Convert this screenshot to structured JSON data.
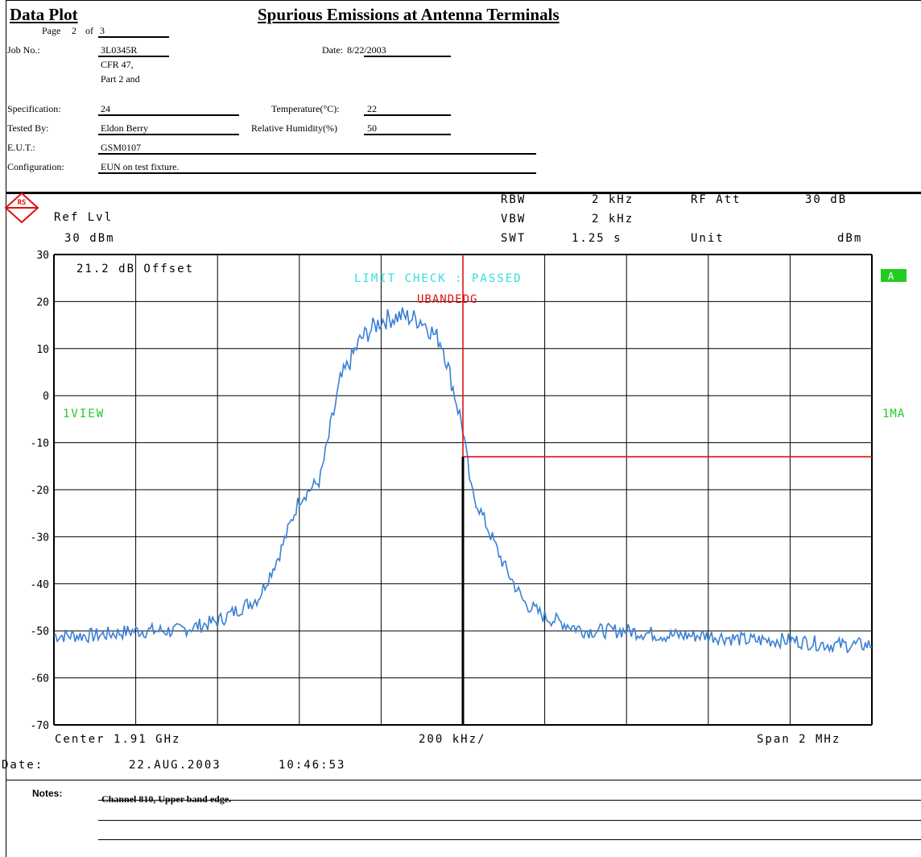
{
  "header": {
    "left_title": "Data Plot",
    "main_title": "Spurious Emissions at Antenna Terminals",
    "page_label": "Page",
    "page_num": "2",
    "page_of": "of",
    "page_total": "3",
    "job_label": "Job No.:",
    "job_value": "3L0345R",
    "date_label": "Date:",
    "date_value": "8/22/2003",
    "spec_label": "Specification:",
    "spec_line1": "CFR 47,",
    "spec_line2": "Part 2 and",
    "spec_line3": "24",
    "temp_label": "Temperature(°C):",
    "temp_value": "22",
    "tested_label": "Tested By:",
    "tested_value": "Eldon Berry",
    "humidity_label": "Relative Humidity(%)",
    "humidity_value": "50",
    "eut_label": "E.U.T.:",
    "eut_value": "GSM0107",
    "config_label": "Configuration:",
    "config_value": "EUN on test fixture."
  },
  "analyzer": {
    "rbw_label": "RBW",
    "rbw_value": "2 kHz",
    "vbw_label": "VBW",
    "vbw_value": "2 kHz",
    "swt_label": "SWT",
    "swt_value": "1.25 s",
    "rfatt_label": "RF Att",
    "rfatt_value": "30 dB",
    "unit_label": "Unit",
    "unit_value": "dBm",
    "ref_label": "Ref Lvl",
    "ref_value": "30 dBm",
    "offset_text": "21.2 dB Offset",
    "limit_text": "LIMIT CHECK  : PASSED",
    "limit_line_name": "UBANDEDG",
    "trace_left": "1VIEW",
    "trace_right": "1MA",
    "marker_box": "A",
    "center_label": "Center 1.91 GHz",
    "div_label": "200 kHz/",
    "span_label": "Span 2 MHz",
    "date_label": "Date:",
    "date_value": "22.AUG.2003",
    "time_value": "10:46:53",
    "logo_text": "RS",
    "colors": {
      "trace": "#3a7fd5",
      "limit": "#e01010",
      "status": "#33dddd",
      "marker": "#22cc22"
    }
  },
  "chart_data": {
    "type": "line",
    "x_units": "MHz offset from center",
    "xlim": [
      -1,
      1
    ],
    "ylim": [
      -70,
      30
    ],
    "yticks": [
      "30",
      "20",
      "10",
      "0",
      "-10",
      "-20",
      "-30",
      "-40",
      "-50",
      "-60",
      "-70"
    ],
    "grid": true,
    "series": [
      {
        "x": [
          -1.0,
          -0.9,
          -0.8,
          -0.7,
          -0.6,
          -0.5,
          -0.45,
          -0.4,
          -0.35,
          -0.3,
          -0.25,
          -0.2,
          -0.15,
          -0.1,
          -0.05,
          0.0,
          0.02,
          0.05,
          0.1,
          0.15,
          0.2,
          0.3,
          0.4,
          0.5,
          0.6,
          0.7,
          0.8,
          0.9,
          1.0
        ],
        "y": [
          -51,
          -51,
          -50,
          -50,
          -48,
          -43,
          -34,
          -22,
          -18,
          3,
          12,
          16,
          17,
          16,
          11,
          -7,
          -20,
          -26,
          -36,
          -44,
          -47,
          -50,
          -50,
          -51,
          -51,
          -52,
          -52,
          -53,
          -53
        ]
      }
    ],
    "limit_line": {
      "name": "UBANDEDG",
      "x": [
        0.0,
        0.0,
        1.0
      ],
      "y": [
        30,
        -13,
        -13
      ]
    }
  },
  "notes": {
    "label": "Notes:",
    "text": "Channel 810, Upper band edge."
  }
}
